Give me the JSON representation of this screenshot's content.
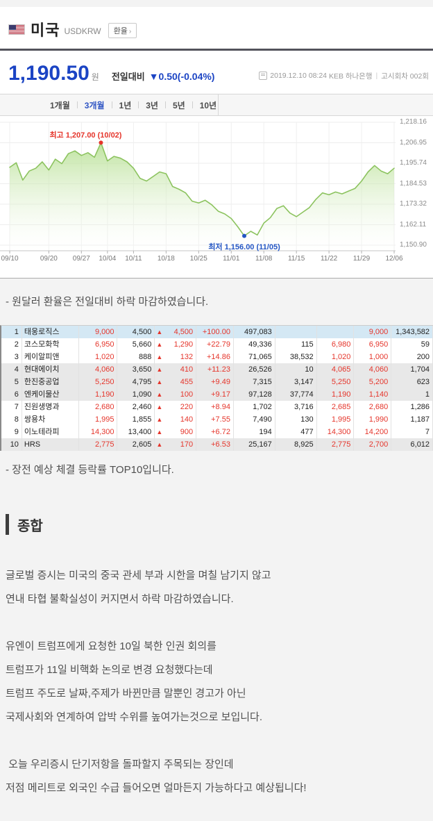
{
  "header": {
    "country": "미국",
    "pair": "USDKRW",
    "rate_button": "환율",
    "rate_button_arrow": "›"
  },
  "quote": {
    "price": "1,190.50",
    "currency_label": "원",
    "change_label": "전일대비",
    "change_arrow": "▼",
    "change_text": "0.50(-0.04%)",
    "timestamp": "2019.12.10 08:24",
    "bank": "KEB 하나은행",
    "meta_divider": "|",
    "round": "고시회차 002회"
  },
  "period_tabs": {
    "items": [
      "1개월",
      "3개월",
      "1년",
      "3년",
      "5년",
      "10년"
    ],
    "active_index": 1
  },
  "chart_data": {
    "type": "area",
    "x": [
      "09/10",
      "09/11",
      "09/16",
      "09/17",
      "09/18",
      "09/19",
      "09/20",
      "09/23",
      "09/24",
      "09/25",
      "09/26",
      "09/27",
      "09/30",
      "10/01",
      "10/02",
      "10/04",
      "10/07",
      "10/08",
      "10/10",
      "10/11",
      "10/14",
      "10/15",
      "10/16",
      "10/17",
      "10/18",
      "10/21",
      "10/22",
      "10/23",
      "10/24",
      "10/25",
      "10/28",
      "10/29",
      "10/30",
      "10/31",
      "11/01",
      "11/04",
      "11/05",
      "11/06",
      "11/07",
      "11/08",
      "11/11",
      "11/12",
      "11/13",
      "11/14",
      "11/15",
      "11/18",
      "11/19",
      "11/20",
      "11/21",
      "11/22",
      "11/25",
      "11/26",
      "11/27",
      "11/28",
      "11/29",
      "12/02",
      "12/03",
      "12/04",
      "12/05",
      "12/06"
    ],
    "values": [
      1193.5,
      1196.0,
      1186.5,
      1191.5,
      1193.0,
      1196.5,
      1192.0,
      1198.0,
      1195.5,
      1201.0,
      1202.5,
      1200.0,
      1201.5,
      1199.0,
      1207.0,
      1197.0,
      1199.5,
      1198.5,
      1196.5,
      1193.0,
      1187.5,
      1186.0,
      1188.5,
      1191.0,
      1190.0,
      1183.0,
      1181.5,
      1179.5,
      1175.0,
      1174.0,
      1175.5,
      1173.0,
      1169.5,
      1168.0,
      1165.5,
      1161.0,
      1156.0,
      1158.5,
      1156.5,
      1163.0,
      1166.0,
      1171.0,
      1172.5,
      1168.5,
      1166.5,
      1169.0,
      1171.5,
      1176.0,
      1179.5,
      1178.5,
      1180.0,
      1179.0,
      1180.5,
      1182.0,
      1186.0,
      1191.0,
      1194.5,
      1191.5,
      1190.0,
      1193.0
    ],
    "x_tick_labels": [
      "09/10",
      "09/20",
      "09/27",
      "10/04",
      "10/11",
      "10/18",
      "10/25",
      "11/01",
      "11/08",
      "11/15",
      "11/22",
      "11/29",
      "12/06"
    ],
    "x_tick_indices": [
      0,
      6,
      11,
      15,
      19,
      24,
      29,
      34,
      39,
      44,
      49,
      54,
      59
    ],
    "y_tick_labels": [
      "1,218.16",
      "1,206.95",
      "1,195.74",
      "1,184.53",
      "1,173.32",
      "1,162.11",
      "1,150.90"
    ],
    "y_tick_values": [
      1218.16,
      1206.95,
      1195.74,
      1184.53,
      1173.32,
      1162.11,
      1150.9
    ],
    "ylim": [
      1150.9,
      1218.16
    ],
    "grid": true,
    "legend": false,
    "line_color": "#8cc35f",
    "fill_top_color": "#aedc86",
    "high_annotation": {
      "label": "최고 1,207.00 (10/02)",
      "index": 14,
      "value": 1207.0,
      "color": "#e5352b"
    },
    "low_annotation": {
      "label": "최저 1,156.00 (11/05)",
      "index": 36,
      "value": 1156.0,
      "color": "#2456c4"
    }
  },
  "fx_comment": "- 원달러 환율은 전일대비 하락 마감하였습니다.",
  "stock_table": {
    "rows": [
      {
        "band": "blue",
        "cells": [
          "1",
          "태웅로직스",
          "9,000",
          "4,500",
          "4,500",
          "+100.00",
          "497,083",
          "",
          "",
          "9,000",
          "1,343,582"
        ]
      },
      {
        "band": "white",
        "cells": [
          "2",
          "코스모화학",
          "6,950",
          "5,660",
          "1,290",
          "+22.79",
          "49,336",
          "115",
          "6,980",
          "6,950",
          "59"
        ]
      },
      {
        "band": "white",
        "cells": [
          "3",
          "케이알피앤",
          "1,020",
          "888",
          "132",
          "+14.86",
          "71,065",
          "38,532",
          "1,020",
          "1,000",
          "200"
        ]
      },
      {
        "band": "gray",
        "cells": [
          "4",
          "현대에이치",
          "4,060",
          "3,650",
          "410",
          "+11.23",
          "26,526",
          "10",
          "4,065",
          "4,060",
          "1,704"
        ]
      },
      {
        "band": "gray",
        "cells": [
          "5",
          "한진중공업",
          "5,250",
          "4,795",
          "455",
          "+9.49",
          "7,315",
          "3,147",
          "5,250",
          "5,200",
          "623"
        ]
      },
      {
        "band": "gray",
        "cells": [
          "6",
          "엔케이물산",
          "1,190",
          "1,090",
          "100",
          "+9.17",
          "97,128",
          "37,774",
          "1,190",
          "1,140",
          "1"
        ]
      },
      {
        "band": "white",
        "cells": [
          "7",
          "진원생명과",
          "2,680",
          "2,460",
          "220",
          "+8.94",
          "1,702",
          "3,716",
          "2,685",
          "2,680",
          "1,286"
        ]
      },
      {
        "band": "white",
        "cells": [
          "8",
          "쌍용차",
          "1,995",
          "1,855",
          "140",
          "+7.55",
          "7,490",
          "130",
          "1,995",
          "1,990",
          "1,187"
        ]
      },
      {
        "band": "white",
        "cells": [
          "9",
          "이노테라피",
          "14,300",
          "13,400",
          "900",
          "+6.72",
          "194",
          "477",
          "14,300",
          "14,200",
          "7"
        ]
      },
      {
        "band": "gray",
        "cells": [
          "10",
          "HRS",
          "2,775",
          "2,605",
          "170",
          "+6.53",
          "25,167",
          "8,925",
          "2,775",
          "2,700",
          "6,012"
        ]
      }
    ],
    "up_arrow": "▲"
  },
  "table_comment": "- 장전 예상 체결 등락률 TOP10입니다.",
  "summary": {
    "title": "종합",
    "paragraphs": [
      [
        "글로벌 증시는 미국의 중국 관세 부과 시한을 며칠 남기지 않고",
        "연내 타협 불확실성이 커지면서 하락 마감하였습니다."
      ],
      [
        "유엔이 트럼프에게 요청한 10일 북한 인권 회의를",
        "트럼프가 11일 비핵화 논의로 변경 요청했다는데",
        "트럼프 주도로 날짜,주제가 바뀐만큼 말뿐인 경고가 아닌",
        "국제사회와 연계하여 압박 수위를 높여가는것으로 보입니다."
      ],
      [
        " 오늘 우리증시 단기저항을 돌파할지 주목되는 장인데",
        "저점 메리트로 외국인 수급 들어오면 얼마든지 가능하다고 예상됩니다!"
      ]
    ]
  }
}
